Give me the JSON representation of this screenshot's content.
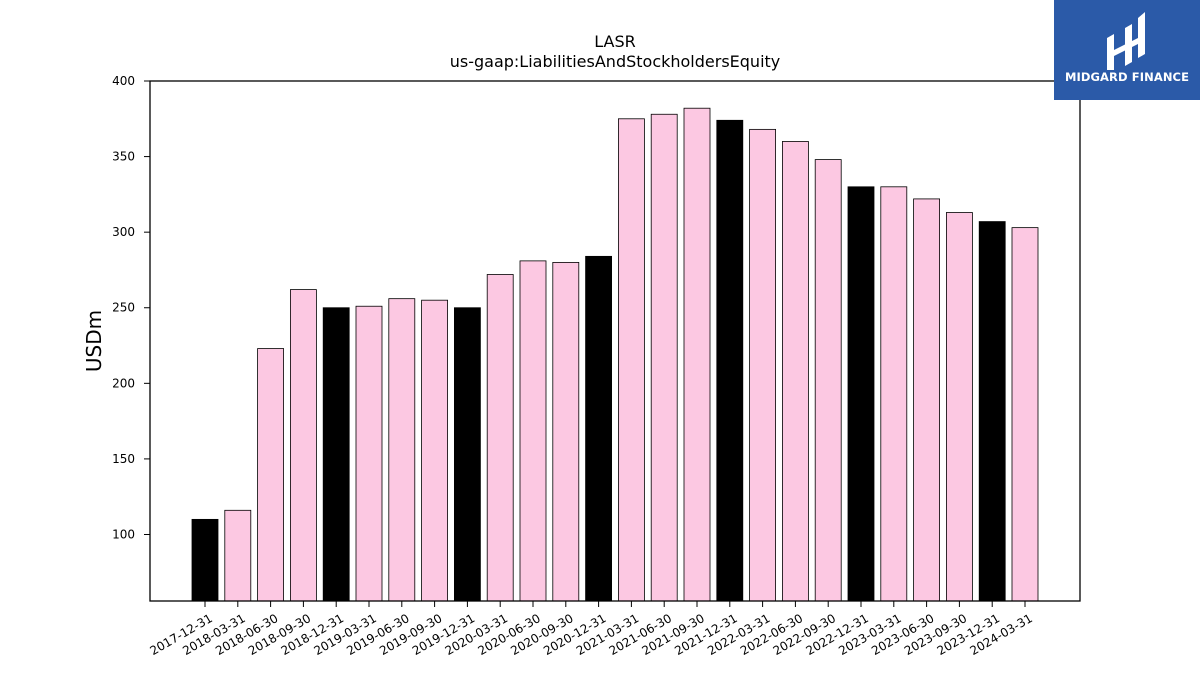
{
  "chart_data": {
    "type": "bar",
    "title": "LASR",
    "subtitle": "us-gaap:LiabilitiesAndStockholdersEquity",
    "xlabel": "",
    "ylabel": "USDm",
    "ylim": [
      56,
      400
    ],
    "yticks": [
      100,
      150,
      200,
      250,
      300,
      350,
      400
    ],
    "grid": false,
    "categories": [
      "2017-12-31",
      "2018-03-31",
      "2018-06-30",
      "2018-09-30",
      "2018-12-31",
      "2019-03-31",
      "2019-06-30",
      "2019-09-30",
      "2019-12-31",
      "2020-03-31",
      "2020-06-30",
      "2020-09-30",
      "2020-12-31",
      "2021-03-31",
      "2021-06-30",
      "2021-09-30",
      "2021-12-31",
      "2022-03-31",
      "2022-06-30",
      "2022-09-30",
      "2022-12-31",
      "2023-03-31",
      "2023-06-30",
      "2023-09-30",
      "2023-12-31",
      "2024-03-31"
    ],
    "values": [
      110,
      116,
      223,
      262,
      250,
      251,
      256,
      255,
      250,
      272,
      281,
      280,
      284,
      375,
      378,
      382,
      374,
      368,
      360,
      348,
      330,
      330,
      322,
      313,
      307,
      303
    ],
    "colors": {
      "year_end": "#000000",
      "quarter": "#fcc8e2",
      "outline": "#000000"
    }
  },
  "logo": {
    "text": "MIDGARD FINANCE",
    "background": "#2b5aa8"
  }
}
